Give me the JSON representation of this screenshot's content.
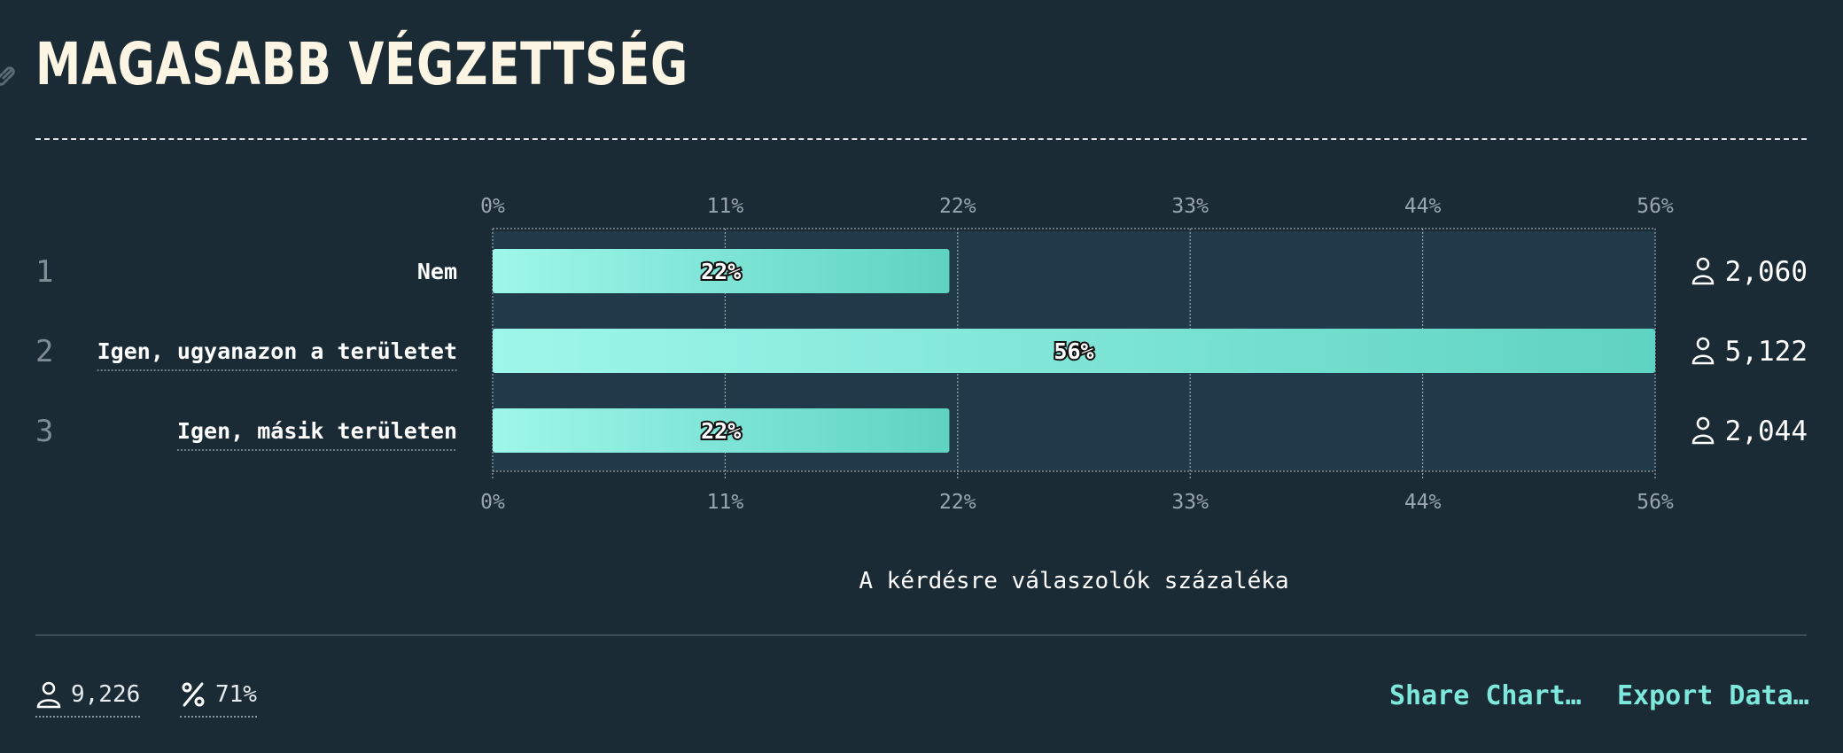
{
  "title": "MAGASABB VÉGZETTSÉG",
  "chart_data": {
    "type": "bar",
    "orientation": "horizontal",
    "categories": [
      "Nem",
      "Igen, ugyanazon a területet",
      "Igen, másik területen"
    ],
    "ranks": [
      "1",
      "2",
      "3"
    ],
    "values": [
      22,
      56,
      22
    ],
    "bar_labels": [
      "22%",
      "56%",
      "22%"
    ],
    "counts": [
      "2,060",
      "5,122",
      "2,044"
    ],
    "x_ticks": [
      "0%",
      "11%",
      "22%",
      "33%",
      "44%",
      "56%"
    ],
    "xlim": [
      0,
      56
    ],
    "xlabel": "A kérdésre válaszolók százaléka",
    "grid": true,
    "colors": {
      "bar_start": "#9ef7ea",
      "bar_end": "#5fd3c2",
      "track": "#203a4a",
      "grid": "#9aa6ad"
    }
  },
  "footer": {
    "respondents": "9,226",
    "percent": "71%",
    "share_label": "Share Chart…",
    "export_label": "Export Data…"
  },
  "icons": {
    "link": "link-icon",
    "person": "person-icon",
    "percent": "percent-icon"
  },
  "colors": {
    "background": "#1a2b35",
    "title": "#fcf5e3",
    "accent": "#7fe8dc"
  }
}
